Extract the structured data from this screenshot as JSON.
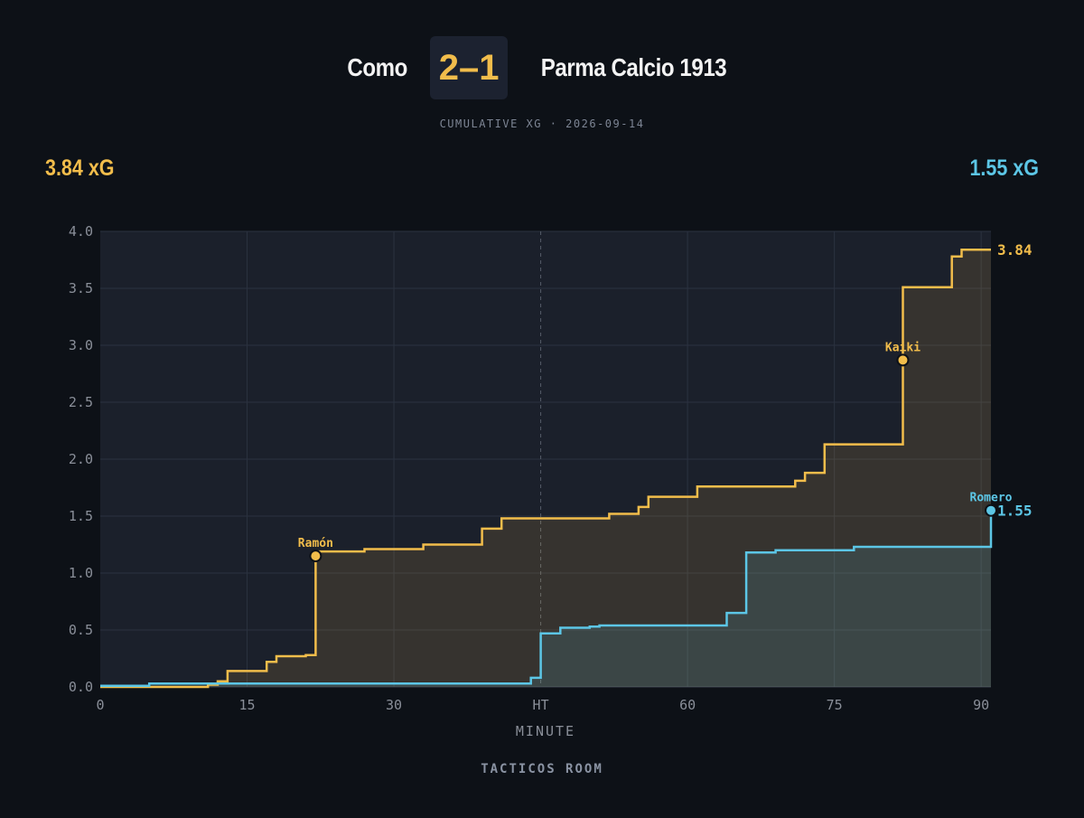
{
  "header": {
    "home_team": "Como",
    "away_team": "Parma Calcio 1913",
    "score": "2–1",
    "subtitle": "CUMULATIVE XG · 2026-09-14",
    "home_total": "3.84 xG",
    "away_total": "1.55 xG"
  },
  "footer": {
    "brand": "TACTICOS ROOM"
  },
  "colors": {
    "home": "#f2bd4b",
    "away": "#5cc6e6",
    "background": "#0d1117",
    "plot_bg": "#1b202b"
  },
  "chart_data": {
    "type": "line",
    "step": true,
    "xlabel": "MINUTE",
    "xlim": [
      0,
      91
    ],
    "ylim": [
      0,
      4.0
    ],
    "xticks": [
      {
        "value": 0,
        "label": "0"
      },
      {
        "value": 15,
        "label": "15"
      },
      {
        "value": 30,
        "label": "30"
      },
      {
        "value": 45,
        "label": "HT"
      },
      {
        "value": 60,
        "label": "60"
      },
      {
        "value": 75,
        "label": "75"
      },
      {
        "value": 90,
        "label": "90"
      }
    ],
    "yticks": [
      0.0,
      0.5,
      1.0,
      1.5,
      2.0,
      2.5,
      3.0,
      3.5,
      4.0
    ],
    "halftime_minute": 45,
    "grid": true,
    "series": [
      {
        "team": "home",
        "end_label": "3.84",
        "points": [
          [
            0,
            0.0
          ],
          [
            11,
            0.02
          ],
          [
            12,
            0.05
          ],
          [
            13,
            0.14
          ],
          [
            17,
            0.22
          ],
          [
            18,
            0.27
          ],
          [
            21,
            0.28
          ],
          [
            22,
            1.15
          ],
          [
            22.3,
            1.19
          ],
          [
            27,
            1.21
          ],
          [
            33,
            1.25
          ],
          [
            39,
            1.39
          ],
          [
            41,
            1.48
          ],
          [
            52,
            1.52
          ],
          [
            55,
            1.58
          ],
          [
            56,
            1.67
          ],
          [
            61,
            1.76
          ],
          [
            71,
            1.81
          ],
          [
            72,
            1.88
          ],
          [
            74,
            2.13
          ],
          [
            82,
            2.87
          ],
          [
            82,
            3.51
          ],
          [
            87,
            3.78
          ],
          [
            88,
            3.84
          ],
          [
            91,
            3.84
          ]
        ],
        "goals": [
          {
            "minute": 22,
            "xg": 1.15,
            "player": "Ramón"
          },
          {
            "minute": 82,
            "xg": 2.87,
            "player": "Kaiki"
          }
        ]
      },
      {
        "team": "away",
        "end_label": "1.55",
        "points": [
          [
            0,
            0.01
          ],
          [
            5,
            0.03
          ],
          [
            44,
            0.08
          ],
          [
            45,
            0.47
          ],
          [
            47,
            0.52
          ],
          [
            50,
            0.53
          ],
          [
            51,
            0.54
          ],
          [
            64,
            0.65
          ],
          [
            66,
            1.18
          ],
          [
            69,
            1.2
          ],
          [
            77,
            1.23
          ],
          [
            91,
            1.23
          ],
          [
            91,
            1.55
          ]
        ],
        "goals": [
          {
            "minute": 91,
            "xg": 1.55,
            "player": "Romero"
          }
        ]
      }
    ]
  }
}
